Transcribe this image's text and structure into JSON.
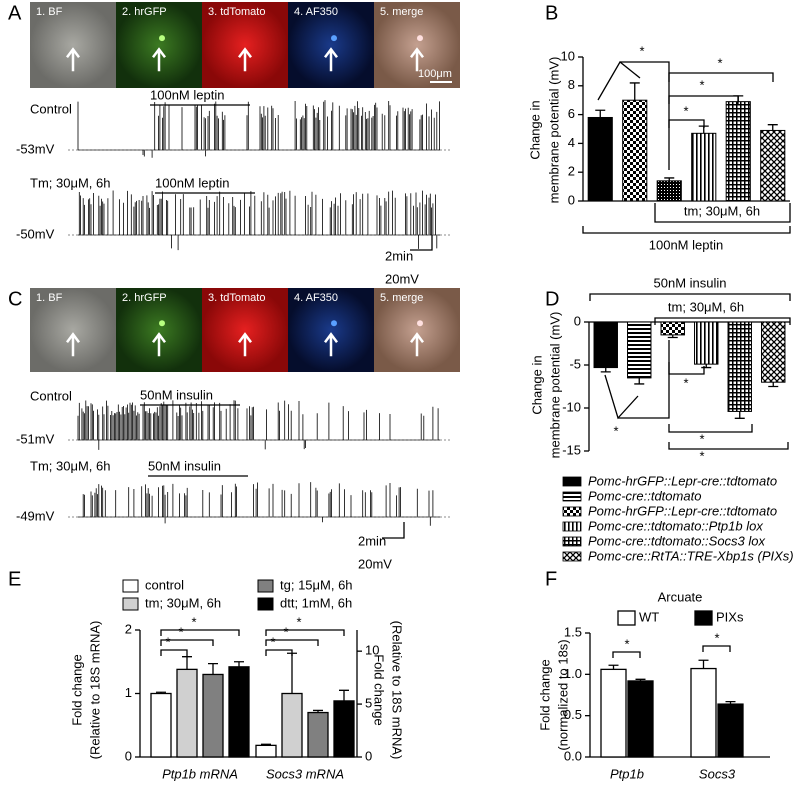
{
  "panel_labels": [
    "A",
    "B",
    "C",
    "D",
    "E",
    "F"
  ],
  "imaging": [
    {
      "tiles": [
        "1. BF",
        "2. hrGFP",
        "3. tdTomato",
        "4. AF350",
        "5. merge"
      ],
      "scale_bar": "100μm"
    },
    {
      "tiles": [
        "1. BF",
        "2. hrGFP",
        "3. tdTomato",
        "4. AF350",
        "5. merge"
      ]
    }
  ],
  "recordings": [
    {
      "rows": [
        {
          "condition": "Control",
          "treatment": "100nM leptin",
          "baseline": "-53mV"
        },
        {
          "condition": "Tm; 30μM, 6h",
          "treatment": "100nM leptin",
          "baseline": "-50mV"
        }
      ],
      "time_scale": "2min",
      "voltage_scale": "20mV"
    },
    {
      "rows": [
        {
          "condition": "Control",
          "treatment": "50nM insulin",
          "baseline": "-51mV"
        },
        {
          "condition": "Tm; 30μM, 6h",
          "treatment": "50nM insulin",
          "baseline": "-49mV"
        }
      ],
      "time_scale": "2min",
      "voltage_scale": "20mV"
    }
  ],
  "chart_data": [
    {
      "type": "bar",
      "ylabel": [
        "Change in",
        "membrane potential (mV)"
      ],
      "ylim": [
        0,
        10
      ],
      "yticks": [
        0,
        2,
        4,
        6,
        8,
        10
      ],
      "categories": [
        null
      ],
      "series": [
        {
          "pattern": "solid",
          "values": [
            5.8
          ],
          "errors": [
            0.5
          ]
        },
        {
          "pattern": "checker",
          "values": [
            7.0
          ],
          "errors": [
            1.2
          ]
        },
        {
          "pattern": "dots",
          "values": [
            1.4
          ],
          "errors": [
            0.2
          ]
        },
        {
          "pattern": "vstripe",
          "values": [
            4.7
          ],
          "errors": [
            0.5
          ]
        },
        {
          "pattern": "grid",
          "values": [
            6.9
          ],
          "errors": [
            0.4
          ]
        },
        {
          "pattern": "diamond",
          "values": [
            4.9
          ],
          "errors": [
            0.4
          ]
        }
      ],
      "annotations": {
        "treatment": "tm; 30μM, 6h",
        "stimulus": "100nM leptin",
        "significance": [
          "*",
          "*",
          "*",
          "*"
        ]
      }
    },
    {
      "type": "bar",
      "ylabel": [
        "Change in",
        "membrane potential (mV)"
      ],
      "ylim": [
        -15,
        0
      ],
      "yticks": [
        0,
        -5,
        -10,
        -15
      ],
      "categories": [
        null
      ],
      "series": [
        {
          "name": "Pomc-hrGFP::Lepr-cre::tdtomato",
          "pattern": "solid",
          "values": [
            -5.3
          ],
          "errors": [
            0.5
          ]
        },
        {
          "name": "Pomc-cre::tdtomato",
          "pattern": "hstripe",
          "values": [
            -6.5
          ],
          "errors": [
            0.7
          ]
        },
        {
          "name": "Pomc-hrGFP::Lepr-cre::tdtomato",
          "pattern": "checker",
          "values": [
            -1.5
          ],
          "errors": [
            0.3
          ]
        },
        {
          "name": "Pomc-cre::tdtomato::Ptp1b lox",
          "pattern": "vstripe",
          "values": [
            -4.9
          ],
          "errors": [
            0.4
          ]
        },
        {
          "name": "Pomc-cre::tdtomato::Socs3 lox",
          "pattern": "grid",
          "values": [
            -10.4
          ],
          "errors": [
            0.8
          ]
        },
        {
          "name": "Pomc-cre::RtTA::TRE-Xbp1s (PIXs)",
          "pattern": "diamond",
          "values": [
            -7.0
          ],
          "errors": [
            0.5
          ]
        }
      ],
      "annotations": {
        "stimulus": "50nM insulin",
        "treatment": "tm; 30μM, 6h",
        "significance": [
          "*",
          "*",
          "*",
          "*"
        ]
      }
    },
    {
      "type": "bar",
      "categories": [
        "Ptp1b mRNA",
        "Socs3 mRNA"
      ],
      "category_axes": [
        "y",
        "y2"
      ],
      "ylim": [
        0,
        2
      ],
      "yticks": [
        0,
        1,
        2
      ],
      "y2lim": [
        0,
        12
      ],
      "y2ticks": [
        0,
        5,
        10
      ],
      "ylabel": [
        "Fold change",
        "(Relative to 18S mRNA)"
      ],
      "y2label": [
        "Fold change",
        "(Relative to 18S mRNA)"
      ],
      "series": [
        {
          "name": "control",
          "color": "#ffffff",
          "values": [
            1.0,
            1.1
          ],
          "errors": [
            0.02,
            0.1
          ]
        },
        {
          "name": "tm; 30μM, 6h",
          "color": "#d0d0d0",
          "values": [
            1.38,
            6.0
          ],
          "errors": [
            0.2,
            3.8
          ]
        },
        {
          "name": "tg; 15μM, 6h",
          "color": "#808080",
          "values": [
            1.3,
            4.2
          ],
          "errors": [
            0.17,
            0.2
          ]
        },
        {
          "name": "dtt; 1mM, 6h",
          "color": "#000000",
          "values": [
            1.42,
            5.3
          ],
          "errors": [
            0.08,
            1.0
          ]
        }
      ],
      "annotations": {
        "significance": [
          "*",
          "*",
          "*",
          "*",
          "*",
          "*"
        ]
      }
    },
    {
      "type": "bar",
      "title": "Arcuate",
      "categories": [
        "Ptp1b",
        "Socs3"
      ],
      "ylabel": [
        "Fold change",
        "(normalized to 18s)"
      ],
      "ylim": [
        0,
        1.5
      ],
      "yticks": [
        {
          "value": 0,
          "label": "0.0"
        },
        0.5,
        {
          "value": 1,
          "label": "1.0"
        },
        1.5
      ],
      "series": [
        {
          "name": "WT",
          "color": "#ffffff",
          "values": [
            1.06,
            1.07
          ],
          "errors": [
            0.05,
            0.1
          ]
        },
        {
          "name": "PIXs",
          "color": "#000000",
          "values": [
            0.92,
            0.64
          ],
          "errors": [
            0.02,
            0.03
          ]
        }
      ],
      "annotations": {
        "significance": [
          "*",
          "*"
        ]
      }
    }
  ]
}
